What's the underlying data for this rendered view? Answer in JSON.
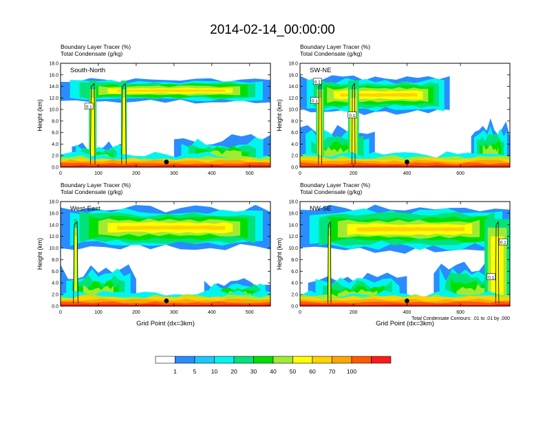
{
  "title": "2014-02-14_00:00:00",
  "chart_data": [
    {
      "type": "heatmap",
      "header": [
        "Boundary Layer Tracer    (%)",
        "Total Condensate    (g/kg)"
      ],
      "label": "South-North",
      "ylabel": "Height (km)",
      "xlabel": "",
      "xlim": [
        0,
        555
      ],
      "ylim": [
        0,
        18
      ],
      "xticks": [
        0,
        100,
        200,
        300,
        400,
        500
      ],
      "yticks": [
        "0.0",
        "2.0",
        "4.0",
        "6.0",
        "8.0",
        "10.0",
        "12.0",
        "14.0",
        "16.0",
        "18.0"
      ],
      "marker_x": 280,
      "contour_labels": [
        {
          "text": "0.1",
          "x": 75,
          "y": 10.5
        }
      ],
      "upper_band": {
        "x0": 0,
        "x1": 555,
        "ybot": 11.0,
        "ytop": 15.5
      },
      "low_blobs": [
        [
          30,
          170,
          1,
          4.5
        ],
        [
          300,
          555,
          1,
          6
        ]
      ],
      "towers": [
        [
          75,
          95
        ],
        [
          160,
          175
        ]
      ],
      "footnote": ""
    },
    {
      "type": "heatmap",
      "header": [
        "Boundary Layer Tracer    (%)",
        "Total Condensate    (g/kg)"
      ],
      "label": "SW-NE",
      "ylabel": "Height (km)",
      "xlabel": "",
      "xlim": [
        0,
        785
      ],
      "ylim": [
        0,
        18
      ],
      "xticks": [
        0,
        200,
        400,
        600
      ],
      "yticks": [
        "0.0",
        "2.0",
        "4.0",
        "6.0",
        "8.0",
        "10.0",
        "12.0",
        "14.0",
        "16.0",
        "18.0"
      ],
      "marker_x": 400,
      "contour_labels": [
        {
          "text": "0.1",
          "x": 65,
          "y": 14.8
        },
        {
          "text": "0.1",
          "x": 55,
          "y": 11.5
        },
        {
          "text": "0.1",
          "x": 195,
          "y": 9.0
        }
      ],
      "upper_band": {
        "x0": 0,
        "x1": 560,
        "ybot": 9.0,
        "ytop": 16.0
      },
      "low_blobs": [
        [
          0,
          280,
          1,
          8
        ],
        [
          640,
          785,
          1,
          8.5
        ]
      ],
      "towers": [
        [
          60,
          90
        ],
        [
          180,
          220
        ]
      ],
      "footnote": ""
    },
    {
      "type": "heatmap",
      "header": [
        "Boundary Layer Tracer    (%)",
        "Total Condensate    (g/kg)"
      ],
      "label": "West-East",
      "ylabel": "Height (km)",
      "xlabel": "Grid Point (dx=3km)",
      "xlim": [
        0,
        555
      ],
      "ylim": [
        0,
        18
      ],
      "xticks": [
        0,
        100,
        200,
        300,
        400,
        500
      ],
      "yticks": [
        "0.0",
        "2.0",
        "4.0",
        "6.0",
        "8.0",
        "10.0",
        "12.0",
        "14.0",
        "16.0",
        "18.0"
      ],
      "marker_x": 280,
      "contour_labels": [],
      "upper_band": {
        "x0": 0,
        "x1": 555,
        "ybot": 9.5,
        "ytop": 17.5
      },
      "low_blobs": [
        [
          0,
          200,
          1,
          7.5
        ],
        [
          380,
          555,
          1,
          5
        ]
      ],
      "towers": [
        [
          35,
          45
        ]
      ],
      "footnote": ""
    },
    {
      "type": "heatmap",
      "header": [
        "Boundary Layer Tracer    (%)",
        "Total Condensate    (g/kg)"
      ],
      "label": "NW-SE",
      "ylabel": "Height (km)",
      "xlabel": "Grid Point (dx=3km)",
      "xlim": [
        0,
        785
      ],
      "ylim": [
        0,
        18
      ],
      "xticks": [
        0,
        200,
        400,
        600
      ],
      "yticks": [
        "0.0",
        "2.0",
        "4.0",
        "6.0",
        "8.0",
        "10.0",
        "12.0",
        "14.0",
        "16.0",
        "18.0"
      ],
      "marker_x": 400,
      "contour_labels": [
        {
          "text": "0.1",
          "x": 760,
          "y": 11.0
        },
        {
          "text": "0.1",
          "x": 715,
          "y": 5.0
        }
      ],
      "upper_band": {
        "x0": 0,
        "x1": 785,
        "ybot": 9.0,
        "ytop": 17.5
      },
      "low_blobs": [
        [
          30,
          400,
          1,
          6
        ],
        [
          500,
          785,
          1,
          8
        ]
      ],
      "towers": [
        [
          105,
          115
        ],
        [
          690,
          785
        ]
      ],
      "footnote": "Total Condensate Contours: .01 to .01 by .000"
    }
  ],
  "colorbar": {
    "colors": [
      "#ffffff",
      "#2a8cff",
      "#19c8ff",
      "#00f5ef",
      "#00e27a",
      "#00e000",
      "#a0eb32",
      "#ffff00",
      "#ffd200",
      "#ffa500",
      "#ff5a00",
      "#ff1a1a"
    ],
    "labels": [
      "1",
      "5",
      "10",
      "20",
      "30",
      "40",
      "50",
      "60",
      "70",
      "100"
    ]
  }
}
